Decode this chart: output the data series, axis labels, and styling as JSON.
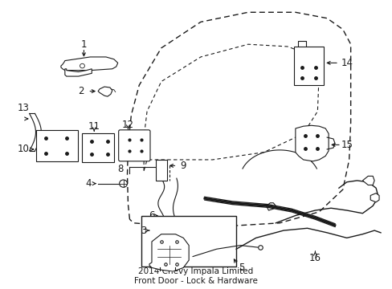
{
  "background_color": "#ffffff",
  "line_color": "#1a1a1a",
  "fig_width": 4.89,
  "fig_height": 3.6,
  "dpi": 100,
  "label_fontsize": 8.5,
  "title": "2014 Chevy Impala Limited\nFront Door - Lock & Hardware",
  "title_fontsize": 7.5
}
